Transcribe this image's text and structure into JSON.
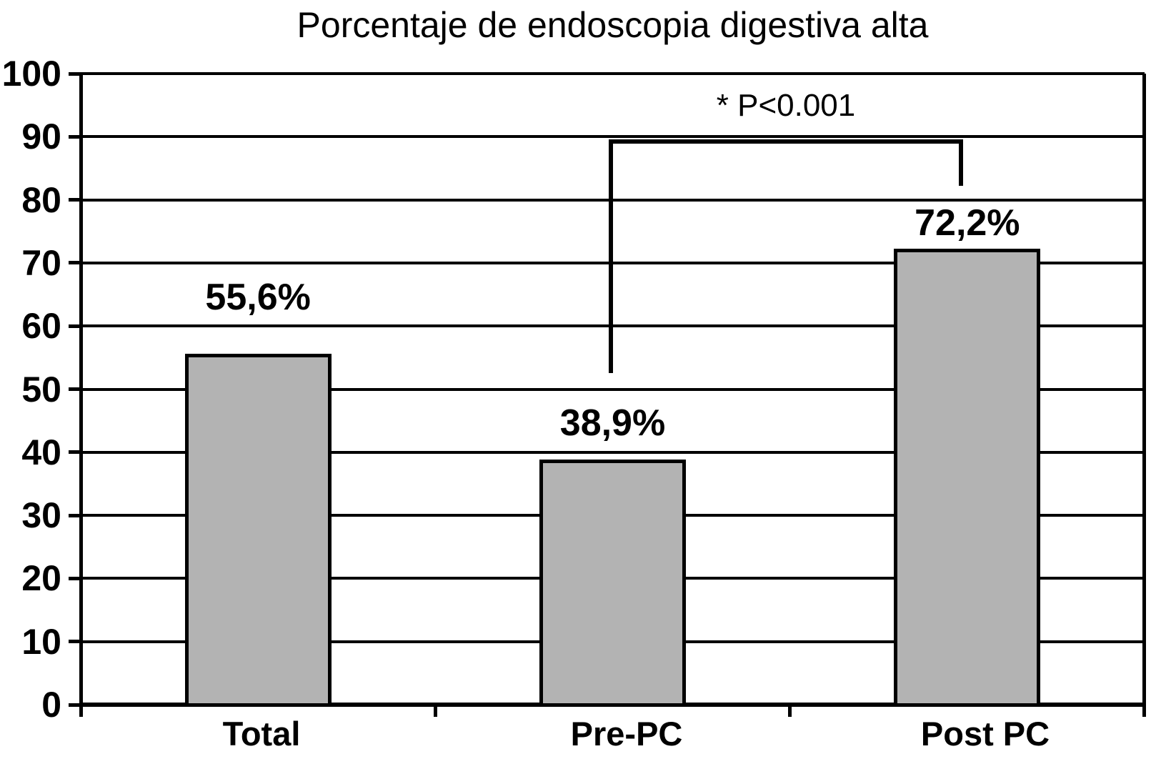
{
  "chart_data": {
    "type": "bar",
    "title": "Porcentaje de endoscopia digestiva alta",
    "categories": [
      "Total",
      "Pre-PC",
      "Post PC"
    ],
    "values": [
      55.6,
      38.9,
      72.2
    ],
    "value_labels": [
      "55,6%",
      "38,9%",
      "72,2%"
    ],
    "ylim": [
      0,
      100
    ],
    "yticks": [
      0,
      10,
      20,
      30,
      40,
      50,
      60,
      70,
      80,
      90,
      100
    ],
    "xlabel": "",
    "ylabel": "",
    "grid": "horizontal",
    "legend": "none",
    "bar_color": "#b3b3b3",
    "bar_border_color": "#000000",
    "axis_color": "#000000",
    "text_color": "#000000",
    "annotation": {
      "label": "* P<0.001",
      "from_category": "Pre-PC",
      "to_category": "Post PC"
    }
  }
}
